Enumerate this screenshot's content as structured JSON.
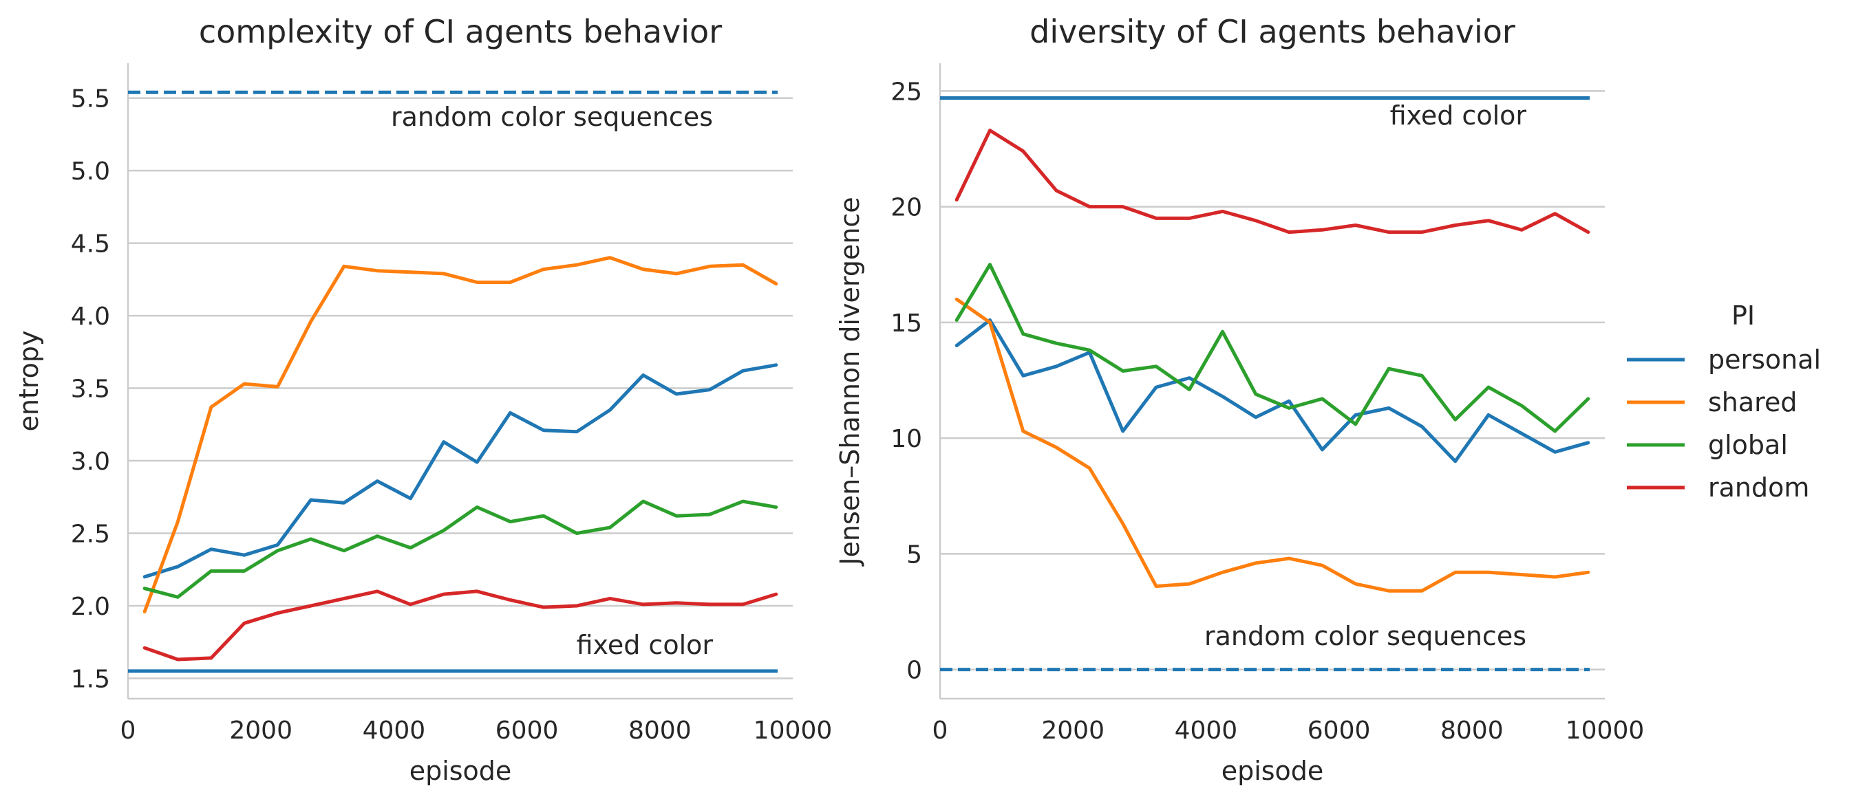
{
  "chart_data": [
    {
      "type": "line",
      "title": "complexity of CI agents behavior",
      "xlabel": "episode",
      "ylabel": "entropy",
      "xlim": [
        0,
        10000
      ],
      "ylim": [
        1.36,
        5.74
      ],
      "xticks": [
        "0",
        "2000",
        "4000",
        "6000",
        "8000",
        "10000"
      ],
      "xtick_values": [
        0,
        2000,
        4000,
        6000,
        8000,
        10000
      ],
      "yticks": [
        "1.5",
        "2.0",
        "2.5",
        "3.0",
        "3.5",
        "4.0",
        "4.5",
        "5.0",
        "5.5"
      ],
      "ytick_values": [
        1.5,
        2.0,
        2.5,
        3.0,
        3.5,
        4.0,
        4.5,
        5.0,
        5.5
      ],
      "grid": "horizontal",
      "x": [
        250,
        750,
        1250,
        1750,
        2250,
        2750,
        3250,
        3750,
        4250,
        4750,
        5250,
        5750,
        6250,
        6750,
        7250,
        7750,
        8250,
        8750,
        9250,
        9750
      ],
      "series": [
        {
          "name": "personal",
          "color": "#1f77b4",
          "values": [
            2.2,
            2.27,
            2.39,
            2.35,
            2.42,
            2.73,
            2.71,
            2.86,
            2.74,
            3.13,
            2.99,
            3.33,
            3.21,
            3.2,
            3.35,
            3.59,
            3.46,
            3.49,
            3.62,
            3.66
          ]
        },
        {
          "name": "shared",
          "color": "#ff7f0e",
          "values": [
            1.96,
            2.58,
            3.37,
            3.53,
            3.51,
            3.96,
            4.34,
            4.31,
            4.3,
            4.29,
            4.23,
            4.23,
            4.32,
            4.35,
            4.4,
            4.32,
            4.29,
            4.34,
            4.35,
            4.22
          ]
        },
        {
          "name": "global",
          "color": "#2ca02c",
          "values": [
            2.12,
            2.06,
            2.24,
            2.24,
            2.38,
            2.46,
            2.38,
            2.48,
            2.4,
            2.52,
            2.68,
            2.58,
            2.62,
            2.5,
            2.54,
            2.72,
            2.62,
            2.63,
            2.72,
            2.68
          ]
        },
        {
          "name": "random",
          "color": "#d62728",
          "values": [
            1.71,
            1.63,
            1.64,
            1.88,
            1.95,
            2.0,
            2.05,
            2.1,
            2.01,
            2.08,
            2.1,
            2.04,
            1.99,
            2.0,
            2.05,
            2.01,
            2.02,
            2.01,
            2.01,
            2.08
          ]
        }
      ],
      "reference_lines": [
        {
          "label": "random color sequences",
          "value": 5.54,
          "style": "dashed",
          "color": "#1f77b4"
        },
        {
          "label": "fixed color",
          "value": 1.55,
          "style": "solid",
          "color": "#1f77b4"
        }
      ]
    },
    {
      "type": "line",
      "title": "diversity of CI agents behavior",
      "xlabel": "episode",
      "ylabel": "Jensen–Shannon divergence",
      "xlim": [
        0,
        10000
      ],
      "ylim": [
        -1.26,
        26.2
      ],
      "xticks": [
        "0",
        "2000",
        "4000",
        "6000",
        "8000",
        "10000"
      ],
      "xtick_values": [
        0,
        2000,
        4000,
        6000,
        8000,
        10000
      ],
      "yticks": [
        "0",
        "5",
        "10",
        "15",
        "20",
        "25"
      ],
      "ytick_values": [
        0,
        5,
        10,
        15,
        20,
        25
      ],
      "grid": "horizontal",
      "x": [
        250,
        750,
        1250,
        1750,
        2250,
        2750,
        3250,
        3750,
        4250,
        4750,
        5250,
        5750,
        6250,
        6750,
        7250,
        7750,
        8250,
        8750,
        9250,
        9750
      ],
      "series": [
        {
          "name": "personal",
          "color": "#1f77b4",
          "values": [
            14.0,
            15.1,
            12.7,
            13.1,
            13.7,
            10.3,
            12.2,
            12.6,
            11.8,
            10.9,
            11.6,
            9.5,
            11.0,
            11.3,
            10.5,
            9.0,
            11.0,
            10.2,
            9.4,
            9.8
          ]
        },
        {
          "name": "shared",
          "color": "#ff7f0e",
          "values": [
            16.0,
            15.0,
            10.3,
            9.6,
            8.7,
            6.3,
            3.6,
            3.7,
            4.2,
            4.6,
            4.8,
            4.5,
            3.7,
            3.4,
            3.4,
            4.2,
            4.2,
            4.1,
            4.0,
            4.2
          ]
        },
        {
          "name": "global",
          "color": "#2ca02c",
          "values": [
            15.1,
            17.5,
            14.5,
            14.1,
            13.8,
            12.9,
            13.1,
            12.1,
            14.6,
            11.9,
            11.3,
            11.7,
            10.6,
            13.0,
            12.7,
            10.8,
            12.2,
            11.4,
            10.3,
            11.7
          ]
        },
        {
          "name": "random",
          "color": "#d62728",
          "values": [
            20.3,
            23.3,
            22.4,
            20.7,
            20.0,
            20.0,
            19.5,
            19.5,
            19.8,
            19.4,
            18.9,
            19.0,
            19.2,
            18.9,
            18.9,
            19.2,
            19.4,
            19.0,
            19.7,
            18.9
          ]
        }
      ],
      "reference_lines": [
        {
          "label": "fixed color",
          "value": 24.7,
          "style": "solid",
          "color": "#1f77b4"
        },
        {
          "label": "random color sequences",
          "value": 0.0,
          "style": "dashed",
          "color": "#1f77b4"
        }
      ]
    }
  ],
  "legend": {
    "title": "PI",
    "placement": "right",
    "entries": [
      {
        "label": "personal",
        "color": "#1f77b4"
      },
      {
        "label": "shared",
        "color": "#ff7f0e"
      },
      {
        "label": "global",
        "color": "#2ca02c"
      },
      {
        "label": "random",
        "color": "#d62728"
      }
    ]
  }
}
